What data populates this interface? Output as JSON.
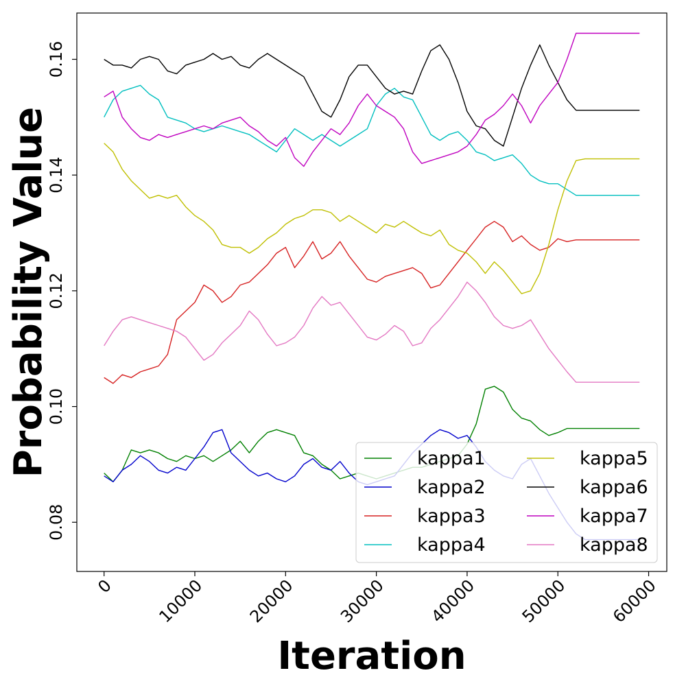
{
  "chart_data": {
    "type": "line",
    "xlabel": "Iteration",
    "ylabel": "Probability Value",
    "xlim": [
      -3000,
      62000
    ],
    "ylim": [
      0.0715,
      0.168
    ],
    "xticks": [
      0,
      10000,
      20000,
      30000,
      40000,
      50000,
      60000
    ],
    "xtick_labels": [
      "0",
      "10000",
      "20000",
      "30000",
      "40000",
      "50000",
      "60000"
    ],
    "yticks": [
      0.08,
      0.1,
      0.12,
      0.14,
      0.16
    ],
    "ytick_labels": [
      "0.08",
      "0.10",
      "0.12",
      "0.14",
      "0.16"
    ],
    "grid": false,
    "legend_position": "lower-right",
    "x": [
      0,
      1000,
      2000,
      3000,
      4000,
      5000,
      6000,
      7000,
      8000,
      9000,
      10000,
      11000,
      12000,
      13000,
      14000,
      15000,
      16000,
      17000,
      18000,
      19000,
      20000,
      21000,
      22000,
      23000,
      24000,
      25000,
      26000,
      27000,
      28000,
      29000,
      30000,
      31000,
      32000,
      33000,
      34000,
      35000,
      36000,
      37000,
      38000,
      39000,
      40000,
      41000,
      42000,
      43000,
      44000,
      45000,
      46000,
      47000,
      48000,
      49000,
      50000,
      51000,
      52000,
      53000,
      54000,
      55000,
      56000,
      57000,
      58000,
      59000
    ],
    "series": [
      {
        "name": "kappa1",
        "color": "#008000",
        "values": [
          0.0885,
          0.087,
          0.089,
          0.0925,
          0.092,
          0.0925,
          0.092,
          0.091,
          0.0905,
          0.0915,
          0.091,
          0.0915,
          0.0905,
          0.0915,
          0.0925,
          0.094,
          0.092,
          0.094,
          0.0955,
          0.096,
          0.0955,
          0.095,
          0.092,
          0.0915,
          0.09,
          0.089,
          0.0875,
          0.088,
          0.0885,
          0.088,
          0.0875,
          0.088,
          0.0885,
          0.089,
          0.0895,
          0.0895,
          0.09,
          0.0905,
          0.091,
          0.0915,
          0.0935,
          0.097,
          0.103,
          0.1035,
          0.1025,
          0.0995,
          0.098,
          0.0975,
          0.096,
          0.095,
          0.0955,
          0.0962,
          0.0962,
          0.0962,
          0.0962,
          0.0962,
          0.0962,
          0.0962,
          0.0962,
          0.0962
        ]
      },
      {
        "name": "kappa2",
        "color": "#0000CC",
        "values": [
          0.088,
          0.087,
          0.089,
          0.09,
          0.0915,
          0.0905,
          0.089,
          0.0885,
          0.0895,
          0.089,
          0.091,
          0.093,
          0.0955,
          0.096,
          0.092,
          0.0905,
          0.089,
          0.088,
          0.0885,
          0.0875,
          0.087,
          0.088,
          0.09,
          0.091,
          0.0895,
          0.089,
          0.0905,
          0.0885,
          0.087,
          0.0865,
          0.087,
          0.0875,
          0.088,
          0.09,
          0.092,
          0.0935,
          0.095,
          0.096,
          0.0955,
          0.0945,
          0.095,
          0.093,
          0.0905,
          0.089,
          0.088,
          0.0875,
          0.09,
          0.091,
          0.088,
          0.085,
          0.0825,
          0.08,
          0.078,
          0.077,
          0.077,
          0.077,
          0.077,
          0.077,
          0.077,
          0.077
        ]
      },
      {
        "name": "kappa3",
        "color": "#D62020",
        "values": [
          0.105,
          0.104,
          0.1055,
          0.105,
          0.106,
          0.1065,
          0.107,
          0.109,
          0.115,
          0.1165,
          0.118,
          0.121,
          0.12,
          0.118,
          0.119,
          0.121,
          0.1215,
          0.123,
          0.1245,
          0.1265,
          0.1275,
          0.124,
          0.126,
          0.1285,
          0.1255,
          0.1265,
          0.1285,
          0.126,
          0.124,
          0.122,
          0.1215,
          0.1225,
          0.123,
          0.1235,
          0.124,
          0.123,
          0.1205,
          0.121,
          0.123,
          0.125,
          0.127,
          0.129,
          0.131,
          0.132,
          0.131,
          0.1285,
          0.1295,
          0.128,
          0.127,
          0.1275,
          0.129,
          0.1285,
          0.1288,
          0.1288,
          0.1288,
          0.1288,
          0.1288,
          0.1288,
          0.1288,
          0.1288
        ]
      },
      {
        "name": "kappa4",
        "color": "#00BFBF",
        "values": [
          0.15,
          0.153,
          0.1545,
          0.155,
          0.1555,
          0.154,
          0.153,
          0.15,
          0.1495,
          0.149,
          0.148,
          0.1475,
          0.148,
          0.1485,
          0.148,
          0.1475,
          0.147,
          0.146,
          0.145,
          0.144,
          0.146,
          0.148,
          0.147,
          0.146,
          0.147,
          0.146,
          0.145,
          0.146,
          0.147,
          0.148,
          0.152,
          0.154,
          0.155,
          0.1535,
          0.153,
          0.15,
          0.147,
          0.146,
          0.147,
          0.1475,
          0.146,
          0.144,
          0.1435,
          0.1425,
          0.143,
          0.1435,
          0.142,
          0.14,
          0.139,
          0.1385,
          0.1385,
          0.1375,
          0.1365,
          0.1365,
          0.1365,
          0.1365,
          0.1365,
          0.1365,
          0.1365,
          0.1365
        ]
      },
      {
        "name": "kappa5",
        "color": "#BFBF00",
        "values": [
          0.1455,
          0.144,
          0.141,
          0.139,
          0.1375,
          0.136,
          0.1365,
          0.136,
          0.1365,
          0.1345,
          0.133,
          0.132,
          0.1305,
          0.128,
          0.1275,
          0.1275,
          0.1265,
          0.1275,
          0.129,
          0.13,
          0.1315,
          0.1325,
          0.133,
          0.134,
          0.134,
          0.1335,
          0.132,
          0.133,
          0.132,
          0.131,
          0.13,
          0.1315,
          0.131,
          0.132,
          0.131,
          0.13,
          0.1295,
          0.1305,
          0.128,
          0.127,
          0.1265,
          0.125,
          0.123,
          0.125,
          0.1235,
          0.1215,
          0.1195,
          0.12,
          0.123,
          0.128,
          0.134,
          0.139,
          0.1425,
          0.1428,
          0.1428,
          0.1428,
          0.1428,
          0.1428,
          0.1428,
          0.1428
        ]
      },
      {
        "name": "kappa6",
        "color": "#000000",
        "values": [
          0.16,
          0.159,
          0.159,
          0.1585,
          0.16,
          0.1605,
          0.16,
          0.158,
          0.1575,
          0.159,
          0.1595,
          0.16,
          0.161,
          0.16,
          0.1605,
          0.159,
          0.1585,
          0.16,
          0.161,
          0.16,
          0.159,
          0.158,
          0.157,
          0.154,
          0.151,
          0.15,
          0.153,
          0.157,
          0.159,
          0.159,
          0.157,
          0.155,
          0.154,
          0.1545,
          0.154,
          0.158,
          0.1615,
          0.1625,
          0.16,
          0.156,
          0.151,
          0.1485,
          0.148,
          0.146,
          0.145,
          0.15,
          0.155,
          0.159,
          0.1625,
          0.159,
          0.156,
          0.153,
          0.1512,
          0.1512,
          0.1512,
          0.1512,
          0.1512,
          0.1512,
          0.1512,
          0.1512
        ]
      },
      {
        "name": "kappa7",
        "color": "#BF00BF",
        "values": [
          0.1535,
          0.1545,
          0.15,
          0.148,
          0.1465,
          0.146,
          0.147,
          0.1465,
          0.147,
          0.1475,
          0.148,
          0.1485,
          0.148,
          0.149,
          0.1495,
          0.15,
          0.1485,
          0.1475,
          0.146,
          0.145,
          0.1465,
          0.143,
          0.1415,
          0.144,
          0.146,
          0.148,
          0.147,
          0.149,
          0.152,
          0.154,
          0.152,
          0.151,
          0.15,
          0.148,
          0.144,
          0.142,
          0.1425,
          0.143,
          0.1435,
          0.144,
          0.145,
          0.147,
          0.1495,
          0.1505,
          0.152,
          0.154,
          0.152,
          0.149,
          0.152,
          0.154,
          0.156,
          0.16,
          0.1645,
          0.1645,
          0.1645,
          0.1645,
          0.1645,
          0.1645,
          0.1645,
          0.1645
        ]
      },
      {
        "name": "kappa8",
        "color": "#E377C2",
        "values": [
          0.1105,
          0.113,
          0.115,
          0.1155,
          0.115,
          0.1145,
          0.114,
          0.1135,
          0.113,
          0.112,
          0.11,
          0.108,
          0.109,
          0.111,
          0.1125,
          0.114,
          0.1165,
          0.115,
          0.1125,
          0.1105,
          0.111,
          0.112,
          0.114,
          0.117,
          0.119,
          0.1175,
          0.118,
          0.116,
          0.114,
          0.112,
          0.1115,
          0.1125,
          0.114,
          0.113,
          0.1105,
          0.111,
          0.1135,
          0.115,
          0.117,
          0.119,
          0.1215,
          0.12,
          0.118,
          0.1155,
          0.114,
          0.1135,
          0.114,
          0.115,
          0.1125,
          0.11,
          0.108,
          0.106,
          0.1042,
          0.1042,
          0.1042,
          0.1042,
          0.1042,
          0.1042,
          0.1042,
          0.1042
        ]
      }
    ]
  }
}
